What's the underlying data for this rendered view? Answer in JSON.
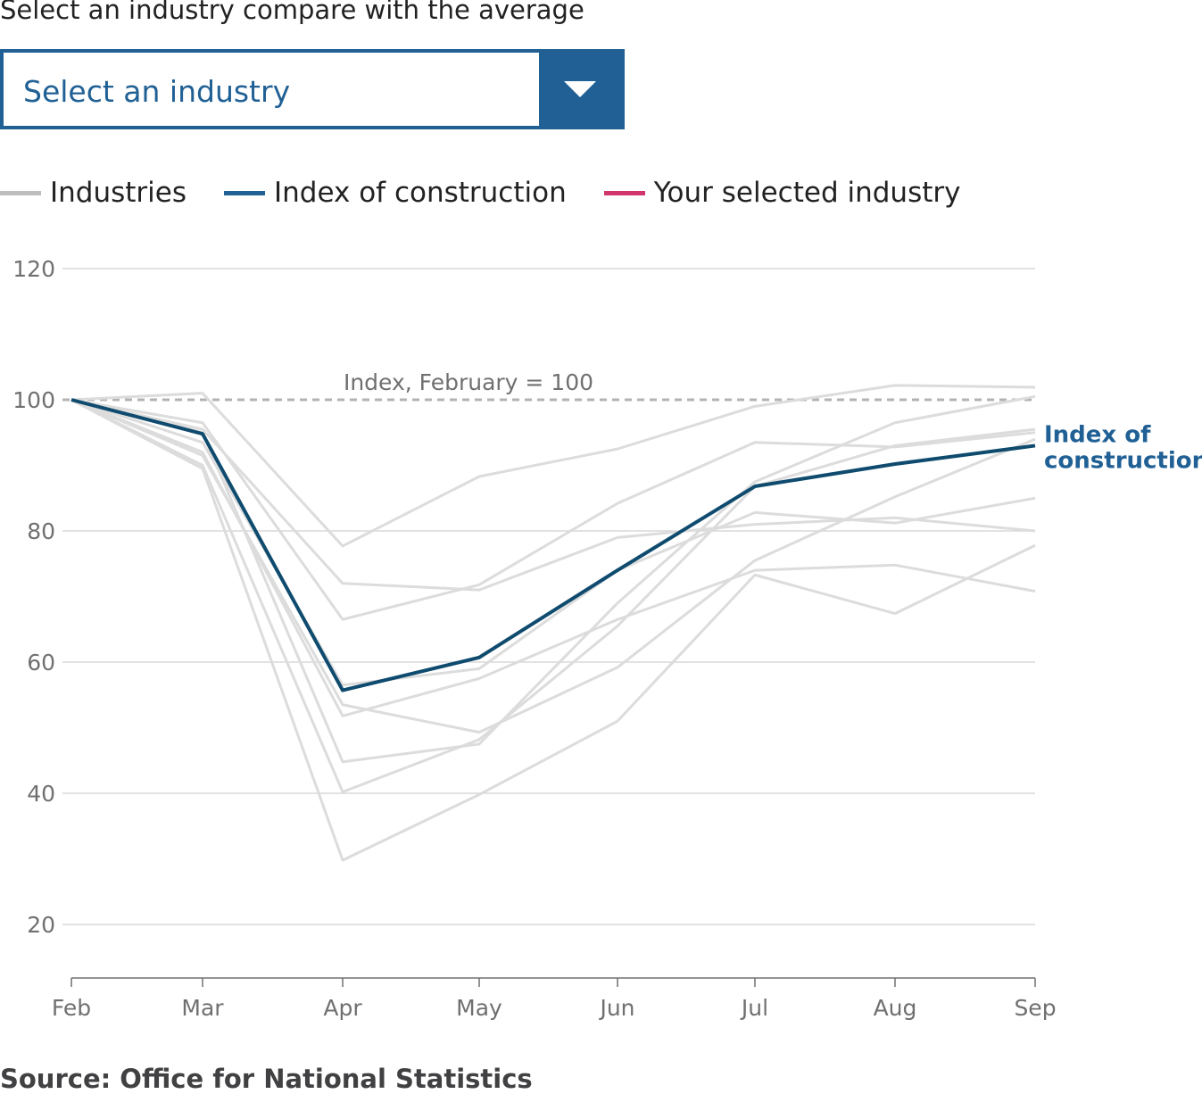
{
  "prompt": "Select an industry compare with the average",
  "select": {
    "value": "Select an industry"
  },
  "legend": [
    {
      "label": "Industries",
      "color": "#bdbdbd"
    },
    {
      "label": "Index of construction",
      "color": "#206095"
    },
    {
      "label": "Your selected industry",
      "color": "#d0366d"
    }
  ],
  "source": "Source: Office for National Statistics",
  "colors": {
    "accent": "#206095",
    "construction": "#0f4b6e",
    "industries": "#dcdcdc",
    "selected": "#d0366d",
    "grid": "#d9d9d9",
    "reference": "#b3b3b3"
  },
  "chart_data": {
    "type": "line",
    "x": [
      "Feb",
      "Mar",
      "Apr",
      "May",
      "Jun",
      "Jul",
      "Aug",
      "Sep"
    ],
    "ylim": [
      20,
      120
    ],
    "yticks": [
      20,
      40,
      60,
      80,
      100,
      120
    ],
    "grid": true,
    "reference_line": {
      "value": 100,
      "label": "Index, February = 100"
    },
    "end_label": "Index of construction",
    "highlight": {
      "name": "Index of construction",
      "values": [
        100,
        94.8,
        55.7,
        60.7,
        74,
        86.8,
        90.2,
        93
      ]
    },
    "series": [
      {
        "values": [
          100,
          101,
          77.7,
          88.3,
          92.5,
          99,
          102.2,
          101.9
        ]
      },
      {
        "values": [
          100,
          95.5,
          72,
          71,
          79,
          81,
          82,
          80
        ]
      },
      {
        "values": [
          100,
          96.5,
          66.5,
          71.8,
          84.2,
          93.5,
          92.8,
          95
        ]
      },
      {
        "values": [
          100,
          93.5,
          56.5,
          59,
          74,
          82.8,
          81.2,
          85
        ]
      },
      {
        "values": [
          100,
          92,
          51.8,
          57.5,
          66.5,
          74,
          74.8,
          70.8
        ]
      },
      {
        "values": [
          100,
          91.5,
          53.5,
          49.3,
          59.2,
          75.5,
          85.2,
          94
        ]
      },
      {
        "values": [
          100,
          95,
          44.8,
          47.5,
          69,
          87.5,
          96.5,
          100.5
        ]
      },
      {
        "values": [
          100,
          90,
          40.2,
          48.2,
          65.5,
          86.8,
          93,
          95.5
        ]
      },
      {
        "values": [
          100,
          89.5,
          29.8,
          39.8,
          51,
          73.3,
          67.4,
          77.8
        ]
      }
    ]
  }
}
